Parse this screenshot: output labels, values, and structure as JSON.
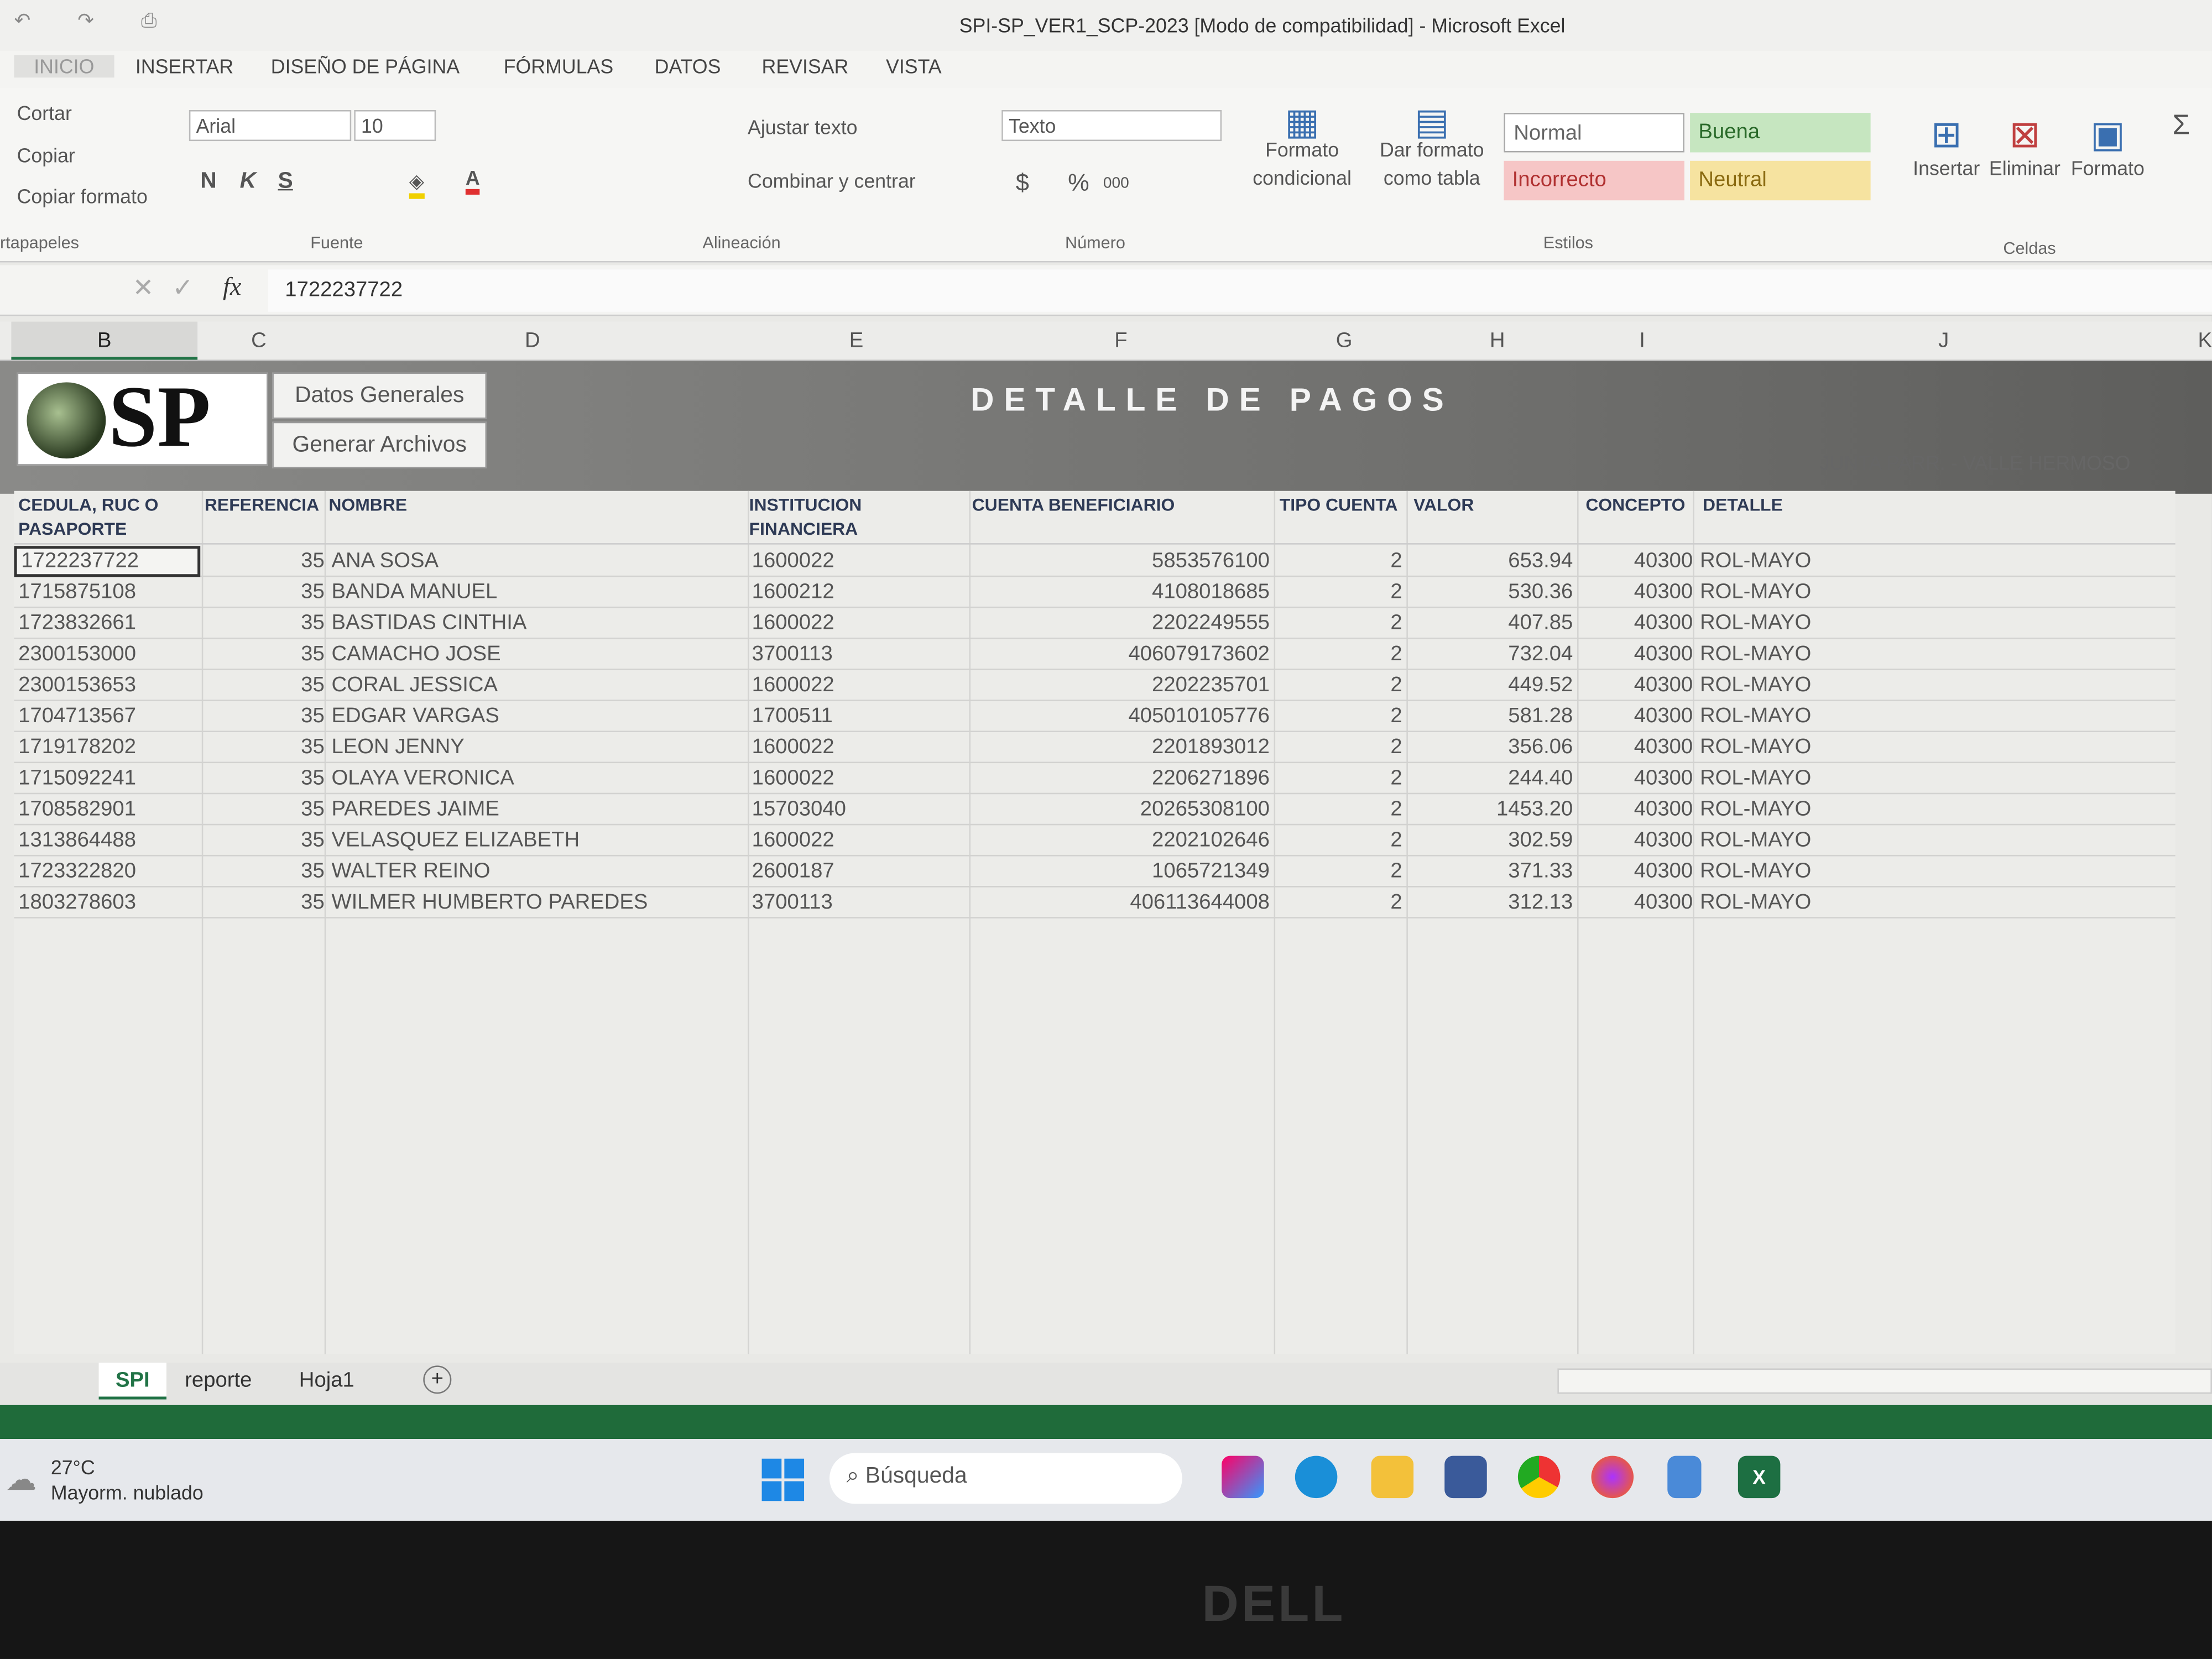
{
  "window": {
    "title": "SPI-SP_VER1_SCP-2023  [Modo de compatibilidad] - Microsoft Excel"
  },
  "ribbon_tabs": [
    "INICIO",
    "INSERTAR",
    "DISEÑO DE PÁGINA",
    "FÓRMULAS",
    "DATOS",
    "REVISAR",
    "VISTA"
  ],
  "clipboard": {
    "cut": "Cortar",
    "copy": "Copiar",
    "format_painter": "Copiar formato",
    "group": "rtapapeles"
  },
  "font": {
    "name": "Arial",
    "size": "10",
    "bold": "N",
    "italic": "K",
    "underline": "S",
    "group": "Fuente"
  },
  "alignment": {
    "wrap": "Ajustar texto",
    "merge": "Combinar y centrar",
    "group": "Alineación"
  },
  "number": {
    "format": "Texto",
    "currency": "$",
    "percent": "%",
    "thousands": "000",
    "group": "Número"
  },
  "styles": {
    "conditional": [
      "Formato",
      "condicional"
    ],
    "table": [
      "Dar formato",
      "como tabla"
    ],
    "normal": "Normal",
    "good": "Buena",
    "bad": "Incorrecto",
    "neutral": "Neutral",
    "group": "Estilos"
  },
  "cells": {
    "insert": "Insertar",
    "delete": "Eliminar",
    "format": "Formato",
    "group": "Celdas"
  },
  "formula_bar": {
    "fx": "fx",
    "value": "1722237722"
  },
  "columns": [
    "B",
    "C",
    "D",
    "E",
    "F",
    "G",
    "H",
    "I",
    "J",
    "K"
  ],
  "banner": {
    "logo": "SP",
    "btn_general": "Datos Generales",
    "btn_generate": "Generar Archivos",
    "title": "DETALLE DE PAGOS",
    "subtitle": "JUNTA PARR. - VALLE HERMOSO"
  },
  "table": {
    "headers": [
      "CEDULA, RUC O PASAPORTE",
      "REFERENCIA",
      "NOMBRE",
      "INSTITUCION FINANCIERA",
      "CUENTA BENEFICIARIO",
      "TIPO CUENTA",
      "VALOR",
      "CONCEPTO",
      "DETALLE"
    ],
    "rows": [
      [
        "1722237722",
        "35",
        "ANA SOSA",
        "1600022",
        "5853576100",
        "2",
        "653.94",
        "40300",
        "ROL-MAYO"
      ],
      [
        "1715875108",
        "35",
        "BANDA MANUEL",
        "1600212",
        "4108018685",
        "2",
        "530.36",
        "40300",
        "ROL-MAYO"
      ],
      [
        "1723832661",
        "35",
        "BASTIDAS CINTHIA",
        "1600022",
        "2202249555",
        "2",
        "407.85",
        "40300",
        "ROL-MAYO"
      ],
      [
        "2300153000",
        "35",
        "CAMACHO JOSE",
        "3700113",
        "406079173602",
        "2",
        "732.04",
        "40300",
        "ROL-MAYO"
      ],
      [
        "2300153653",
        "35",
        "CORAL JESSICA",
        "1600022",
        "2202235701",
        "2",
        "449.52",
        "40300",
        "ROL-MAYO"
      ],
      [
        "1704713567",
        "35",
        "EDGAR VARGAS",
        "1700511",
        "405010105776",
        "2",
        "581.28",
        "40300",
        "ROL-MAYO"
      ],
      [
        "1719178202",
        "35",
        "LEON JENNY",
        "1600022",
        "2201893012",
        "2",
        "356.06",
        "40300",
        "ROL-MAYO"
      ],
      [
        "1715092241",
        "35",
        "OLAYA VERONICA",
        "1600022",
        "2206271896",
        "2",
        "244.40",
        "40300",
        "ROL-MAYO"
      ],
      [
        "1708582901",
        "35",
        "PAREDES JAIME",
        "15703040",
        "20265308100",
        "2",
        "1453.20",
        "40300",
        "ROL-MAYO"
      ],
      [
        "1313864488",
        "35",
        "VELASQUEZ ELIZABETH",
        "1600022",
        "2202102646",
        "2",
        "302.59",
        "40300",
        "ROL-MAYO"
      ],
      [
        "1723322820",
        "35",
        "WALTER REINO",
        "2600187",
        "1065721349",
        "2",
        "371.33",
        "40300",
        "ROL-MAYO"
      ],
      [
        "1803278603",
        "35",
        "WILMER HUMBERTO PAREDES",
        "3700113",
        "406113644008",
        "2",
        "312.13",
        "40300",
        "ROL-MAYO"
      ]
    ]
  },
  "sheet_tabs": [
    "SPI",
    "reporte",
    "Hoja1"
  ],
  "taskbar": {
    "temp": "27°C",
    "weather": "Mayorm. nublado",
    "search": "Búsqueda"
  },
  "bezel": {
    "brand": "DELL"
  }
}
